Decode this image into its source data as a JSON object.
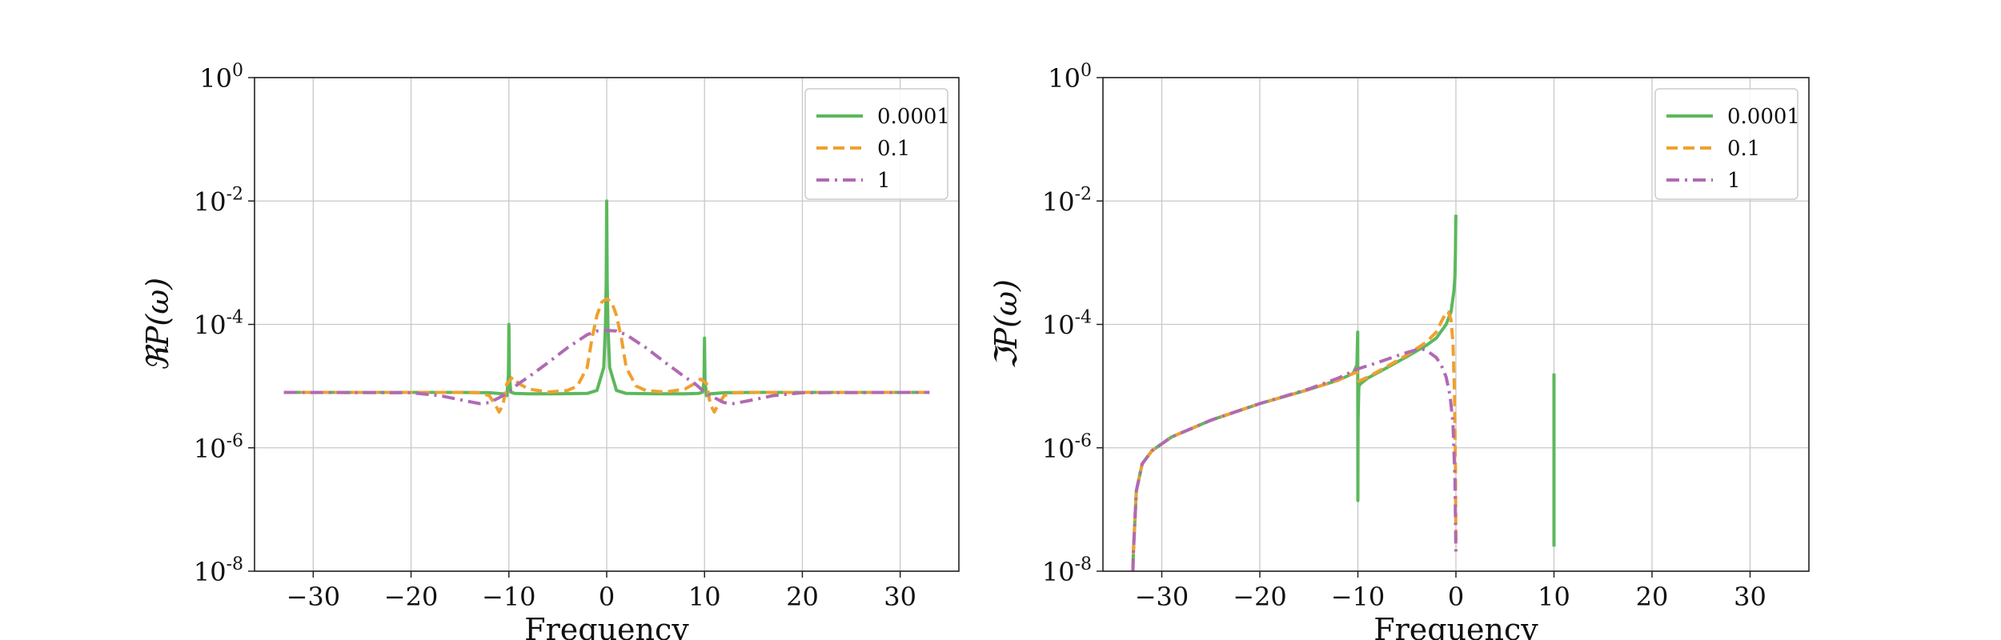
{
  "colors": {
    "green": "#5cb85c",
    "orange": "#f0a030",
    "purple": "#b06ab3"
  },
  "chart_data": [
    {
      "type": "line",
      "xlabel": "Frequency",
      "ylabel": "ℜP(ω)",
      "xlim": [
        -36,
        36
      ],
      "ylim": [
        1e-08,
        1
      ],
      "yscale": "log",
      "grid": true,
      "legend": "top-right",
      "xticks": [
        "−30",
        "−20",
        "−10",
        "0",
        "10",
        "20",
        "30"
      ],
      "yticks": [
        {
          "base": "10",
          "exp": "-8"
        },
        {
          "base": "10",
          "exp": "-6"
        },
        {
          "base": "10",
          "exp": "-4"
        },
        {
          "base": "10",
          "exp": "-2"
        },
        {
          "base": "10",
          "exp": "0"
        }
      ],
      "series": [
        {
          "name": "0.0001",
          "color": "#5cb85c",
          "style": "solid",
          "x": [
            -33,
            -15,
            -12,
            -10.6,
            -10.2,
            -10.05,
            -10.0,
            -9.95,
            -9.8,
            -9.4,
            -8,
            -5,
            -2,
            -1,
            -0.3,
            -0.12,
            -0.05,
            0,
            0.05,
            0.12,
            0.3,
            1,
            2,
            5,
            8,
            9.4,
            9.8,
            9.95,
            10.0,
            10.05,
            10.2,
            10.6,
            12,
            15,
            33
          ],
          "y": [
            7.9e-06,
            7.9e-06,
            7.8e-06,
            7.5e-06,
            7e-06,
            1.5e-05,
            0.0001,
            1.5e-05,
            8e-06,
            7.6e-06,
            7.5e-06,
            7.5e-06,
            7.6e-06,
            8.5e-06,
            2e-05,
            0.0001,
            0.0005,
            0.01,
            0.0005,
            0.0001,
            2e-05,
            8.5e-06,
            7.6e-06,
            7.5e-06,
            7.5e-06,
            7.6e-06,
            8e-06,
            1.2e-05,
            6e-05,
            1.2e-05,
            7e-06,
            7.5e-06,
            7.8e-06,
            7.9e-06,
            7.9e-06
          ]
        },
        {
          "name": "0.1",
          "color": "#f0a030",
          "style": "dashed",
          "x": [
            -33,
            -16,
            -13,
            -12,
            -11.4,
            -11,
            -10.6,
            -10.2,
            -9.6,
            -9,
            -8,
            -6,
            -4,
            -3,
            -2,
            -1.5,
            -1,
            -0.5,
            0,
            0.5,
            1,
            1.5,
            2,
            3,
            4,
            6,
            8,
            9,
            9.6,
            10.2,
            10.6,
            11,
            11.4,
            12,
            13,
            16,
            33
          ],
          "y": [
            7.9e-06,
            7.9e-06,
            7.8e-06,
            7e-06,
            5e-06,
            3.8e-06,
            5e-06,
            1.1e-05,
            1.4e-05,
            1.1e-05,
            9e-06,
            8e-06,
            8.5e-06,
            1e-05,
            2e-05,
            6e-05,
            0.00014,
            0.00023,
            0.00026,
            0.00023,
            0.00014,
            6e-05,
            2e-05,
            1e-05,
            8.5e-06,
            8e-06,
            9e-06,
            1.1e-05,
            1.3e-05,
            1.1e-05,
            5e-06,
            3.8e-06,
            5e-06,
            7e-06,
            7.8e-06,
            7.9e-06,
            7.9e-06
          ]
        },
        {
          "name": "1",
          "color": "#b06ab3",
          "style": "dashdot",
          "x": [
            -33,
            -20,
            -17,
            -15,
            -13,
            -12,
            -11,
            -10,
            -9,
            -8,
            -6,
            -4,
            -2,
            -1,
            0,
            1,
            2,
            4,
            6,
            8,
            9,
            10,
            11,
            12,
            13,
            15,
            17,
            20,
            33
          ],
          "y": [
            7.9e-06,
            7.8e-06,
            7e-06,
            6e-06,
            5.2e-06,
            5.4e-06,
            6.5e-06,
            8e-06,
            1.1e-05,
            1.4e-05,
            2.4e-05,
            4.2e-05,
            6.8e-05,
            7.8e-05,
            8e-05,
            7.8e-05,
            6.8e-05,
            4.2e-05,
            2.4e-05,
            1.4e-05,
            1.1e-05,
            8e-06,
            6.5e-06,
            5.4e-06,
            5.2e-06,
            6e-06,
            7e-06,
            7.8e-06,
            7.9e-06
          ]
        }
      ]
    },
    {
      "type": "line",
      "xlabel": "Frequency",
      "ylabel": "ℑP(ω)",
      "xlim": [
        -36,
        36
      ],
      "ylim": [
        1e-08,
        1
      ],
      "yscale": "log",
      "grid": true,
      "legend": "top-right",
      "xticks": [
        "−30",
        "−20",
        "−10",
        "0",
        "10",
        "20",
        "30"
      ],
      "yticks": [
        {
          "base": "10",
          "exp": "-8"
        },
        {
          "base": "10",
          "exp": "-6"
        },
        {
          "base": "10",
          "exp": "-4"
        },
        {
          "base": "10",
          "exp": "-2"
        },
        {
          "base": "10",
          "exp": "0"
        }
      ],
      "series": [
        {
          "name": "0.0001",
          "color": "#5cb85c",
          "style": "solid",
          "x": [
            -32.95,
            -32.9,
            -32.6,
            -32,
            -31,
            -29,
            -25,
            -20,
            -15,
            -12,
            -10.5,
            -10.1,
            -10.02,
            -10.0,
            -9.98,
            -9.9,
            -9.7,
            -9,
            -7,
            -5,
            -3,
            -2,
            -1,
            -0.5,
            -0.2,
            -0.1,
            -0.05,
            -0.02,
            0,
            null,
            10.0,
            10.0
          ],
          "y": [
            1e-08,
            2e-08,
            2e-07,
            5.5e-07,
            9e-07,
            1.5e-06,
            2.8e-06,
            5.2e-06,
            8.8e-06,
            1.25e-05,
            1.6e-05,
            2.2e-05,
            7.5e-05,
            1.4e-07,
            2.5e-06,
            1e-05,
            1.1e-05,
            1.35e-05,
            2e-05,
            3e-05,
            4.6e-05,
            6e-05,
            0.0001,
            0.00016,
            0.00035,
            0.0006,
            0.0015,
            0.005,
            0.006,
            null,
            2.5e-08,
            1.6e-05
          ]
        },
        {
          "name": "0.1",
          "color": "#f0a030",
          "style": "dashed",
          "x": [
            -32.95,
            -32.9,
            -32.6,
            -32,
            -31,
            -29,
            -25,
            -20,
            -15,
            -12,
            -10.5,
            -10.1,
            -9.9,
            -9,
            -7,
            -5,
            -3,
            -2,
            -1.5,
            -1,
            -0.8,
            -0.5,
            -0.3,
            -0.15,
            -0.05,
            0
          ],
          "y": [
            1e-08,
            2e-08,
            2e-07,
            5.5e-07,
            9e-07,
            1.5e-06,
            2.8e-06,
            5.2e-06,
            8.8e-06,
            1.25e-05,
            1.6e-05,
            1.7e-05,
            1.2e-05,
            1.4e-05,
            2.1e-05,
            3.2e-05,
            5.2e-05,
            7.5e-05,
            0.00011,
            0.000155,
            0.00016,
            0.00012,
            5e-05,
            8e-06,
            5e-07,
            2.5e-08
          ]
        },
        {
          "name": "1",
          "color": "#b06ab3",
          "style": "dashdot",
          "x": [
            -32.95,
            -32.9,
            -32.6,
            -32,
            -31,
            -29,
            -25,
            -20,
            -15,
            -12,
            -10,
            -8,
            -6,
            -5,
            -4,
            -3.5,
            -3,
            -2,
            -1.5,
            -1,
            -0.6,
            -0.3,
            -0.1,
            -0.02,
            0
          ],
          "y": [
            1e-08,
            2e-08,
            2e-07,
            5.5e-07,
            9e-07,
            1.5e-06,
            2.8e-06,
            5.2e-06,
            9e-06,
            1.35e-05,
            1.9e-05,
            2.4e-05,
            3.1e-05,
            3.5e-05,
            3.9e-05,
            4e-05,
            3.8e-05,
            2.9e-05,
            2.2e-05,
            1.4e-05,
            7e-06,
            2.5e-06,
            3e-07,
            3e-08,
            2e-08
          ]
        }
      ]
    }
  ]
}
